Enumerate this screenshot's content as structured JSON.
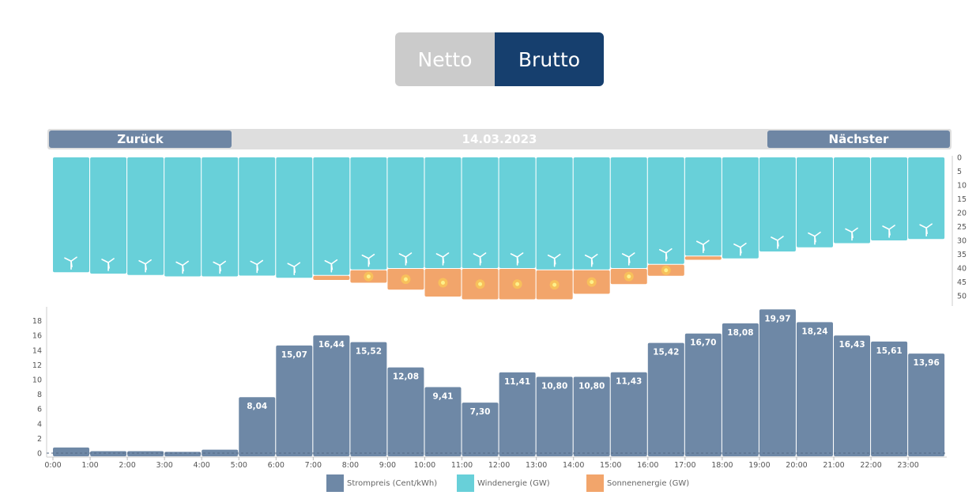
{
  "toggle": {
    "netto_label": "Netto",
    "brutto_label": "Brutto"
  },
  "nav": {
    "prev_label": "Zurück",
    "next_label": "Nächster",
    "date": "14.03.2023"
  },
  "colors": {
    "wind": "#68d0d9",
    "sun": "#f2a56b",
    "price": "#6e88a6",
    "sun_dot": "#f7d23e"
  },
  "legend": [
    {
      "label": "Strompreis (Cent/kWh)",
      "color": "#6e88a6"
    },
    {
      "label": "Windenergie (GW)",
      "color": "#68d0d9"
    },
    {
      "label": "Sonnenenergie (GW)",
      "color": "#f2a56b"
    }
  ],
  "chart_data": [
    {
      "type": "bar",
      "title": "",
      "stacked": true,
      "orientation": "downward",
      "categories": [
        "0:00",
        "1:00",
        "2:00",
        "3:00",
        "4:00",
        "5:00",
        "6:00",
        "7:00",
        "8:00",
        "9:00",
        "10:00",
        "11:00",
        "12:00",
        "13:00",
        "14:00",
        "15:00",
        "16:00",
        "17:00",
        "18:00",
        "19:00",
        "20:00",
        "21:00",
        "22:00",
        "23:00"
      ],
      "series": [
        {
          "name": "Windenergie (GW)",
          "values": [
            41.5,
            42,
            42.5,
            43,
            43,
            42.7,
            43.5,
            42.5,
            40.5,
            40,
            40,
            40,
            40,
            40.5,
            40.5,
            40,
            38.5,
            35.5,
            36.5,
            34,
            32.5,
            31,
            30,
            29.5
          ]
        },
        {
          "name": "Sonnenenergie (GW)",
          "values": [
            0,
            0,
            0,
            0,
            0,
            0,
            0,
            1.5,
            4.5,
            7.5,
            10,
            11,
            11,
            10.5,
            8.5,
            5.5,
            4,
            1.2,
            0,
            0,
            0,
            0,
            0,
            0
          ]
        }
      ],
      "yticks": [
        "0",
        "5",
        "10",
        "15",
        "20",
        "25",
        "30",
        "35",
        "40",
        "45",
        "50"
      ],
      "ylim": [
        0,
        52
      ]
    },
    {
      "type": "bar",
      "title": "",
      "categories": [
        "0:00",
        "1:00",
        "2:00",
        "3:00",
        "4:00",
        "5:00",
        "6:00",
        "7:00",
        "8:00",
        "9:00",
        "10:00",
        "11:00",
        "12:00",
        "13:00",
        "14:00",
        "15:00",
        "16:00",
        "17:00",
        "18:00",
        "19:00",
        "20:00",
        "21:00",
        "22:00",
        "23:00"
      ],
      "series": [
        {
          "name": "Strompreis (Cent/kWh)",
          "values": [
            1.2,
            0.7,
            0.7,
            0.6,
            0.9,
            8.04,
            15.07,
            16.44,
            15.52,
            12.08,
            9.41,
            7.3,
            11.41,
            10.8,
            10.8,
            11.43,
            15.42,
            16.7,
            18.08,
            19.97,
            18.24,
            16.43,
            15.61,
            13.96
          ]
        }
      ],
      "data_labels": [
        "",
        "",
        "",
        "",
        "",
        "8,04",
        "15,07",
        "16,44",
        "15,52",
        "12,08",
        "9,41",
        "7,30",
        "11,41",
        "10,80",
        "10,80",
        "11,43",
        "15,42",
        "16,70",
        "18,08",
        "19,97",
        "18,24",
        "16,43",
        "15,61",
        "13,96"
      ],
      "yticks": [
        "0",
        "2",
        "4",
        "6",
        "8",
        "10",
        "12",
        "14",
        "16",
        "18"
      ],
      "ylim": [
        0,
        20
      ],
      "xlabels": [
        "0:00",
        "1:00",
        "2:00",
        "3:00",
        "4:00",
        "5:00",
        "6:00",
        "7:00",
        "8:00",
        "9:00",
        "10:00",
        "11:00",
        "12:00",
        "13:00",
        "14:00",
        "15:00",
        "16:00",
        "17:00",
        "18:00",
        "19:00",
        "20:00",
        "21:00",
        "22:00",
        "23:00"
      ]
    }
  ]
}
